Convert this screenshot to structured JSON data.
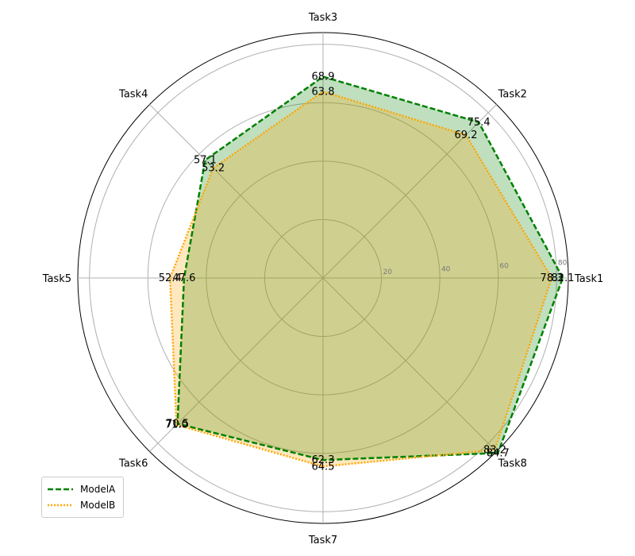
{
  "chart_data": {
    "type": "radar",
    "categories": [
      "Task1",
      "Task2",
      "Task3",
      "Task4",
      "Task5",
      "Task6",
      "Task7",
      "Task8"
    ],
    "rticks": [
      20,
      40,
      60,
      80
    ],
    "rlim": [
      0,
      84
    ],
    "series": [
      {
        "name": "ModelA",
        "values": [
          82.1,
          75.4,
          68.9,
          57.1,
          47.6,
          70.5,
          62.3,
          84.7
        ],
        "value_labels": [
          "82.1",
          "75.4",
          "68.9",
          "57.1",
          "47.6",
          "70.5",
          "62.3",
          "84.7"
        ],
        "color": "#008000",
        "line_style": "dashed"
      },
      {
        "name": "ModelB",
        "values": [
          78.3,
          69.2,
          63.8,
          53.2,
          52.4,
          71.0,
          64.5,
          83.2
        ],
        "value_labels": [
          "78.3",
          "69.2",
          "63.8",
          "53.2",
          "52.4",
          "71.0",
          "64.5",
          "83.2"
        ],
        "color": "#FFA500",
        "line_style": "dotted"
      }
    ],
    "grid": true,
    "legend": "lower-left"
  }
}
